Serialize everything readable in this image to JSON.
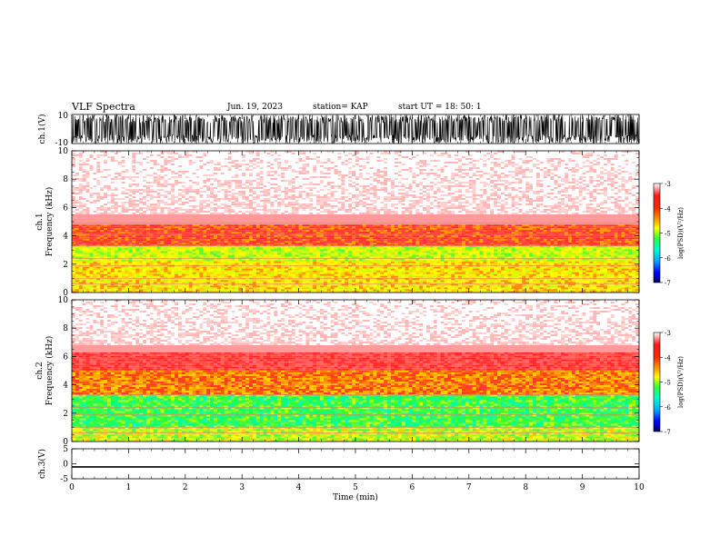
{
  "header": {
    "title": "VLF Spectra",
    "date": "Jun. 19, 2023",
    "station": "station= KAP",
    "start": "start  UT =   18: 50: 1"
  },
  "colors": {
    "red": "#ff2a2a",
    "pale_red": "#ffd6d6",
    "yellow": "#ffff00",
    "green": "#22ff22",
    "cyan": "#00ffd0",
    "blue": "#0000ff",
    "waveform": "#000000"
  },
  "chart_data": [
    {
      "type": "line",
      "panel": "ch1-waveform",
      "ylabel": "ch.1(V)",
      "ylim": [
        -10,
        10
      ],
      "yticks": [
        "10",
        "-10"
      ],
      "xlim": [
        0,
        10
      ],
      "series": [
        {
          "values_range": [
            -10,
            10
          ]
        }
      ]
    },
    {
      "type": "heatmap",
      "panel": "ch1-spectrogram",
      "ylabel_line1": "ch.1",
      "ylabel_line2": "Frequency (kHz)",
      "ylim": [
        0,
        10
      ],
      "yticks": [
        "0",
        "2",
        "4",
        "6",
        "8",
        "10"
      ],
      "xlim": [
        0,
        10
      ],
      "bands_khz": [
        {
          "from": 0,
          "to": 1.0,
          "level": "yellow"
        },
        {
          "from": 1.0,
          "to": 2.2,
          "level": "yellow"
        },
        {
          "from": 2.2,
          "to": 3.3,
          "level": "green-yellow"
        },
        {
          "from": 3.3,
          "to": 4.8,
          "level": "red-orange"
        },
        {
          "from": 4.8,
          "to": 10.0,
          "level": "pale-red"
        }
      ],
      "colorbar": {
        "label": "log(PSD)(V²/Hz)",
        "ticks": [
          "-3",
          "-4",
          "-5",
          "-6",
          "-7"
        ],
        "range": [
          -7,
          -3
        ]
      }
    },
    {
      "type": "heatmap",
      "panel": "ch2-spectrogram",
      "ylabel_line1": "ch.2",
      "ylabel_line2": "Frequency (kHz)",
      "ylim": [
        0,
        10
      ],
      "yticks": [
        "0",
        "2",
        "4",
        "6",
        "8",
        "10"
      ],
      "xlim": [
        0,
        10
      ],
      "bands_khz": [
        {
          "from": 0,
          "to": 1.0,
          "level": "yellow-green"
        },
        {
          "from": 1.0,
          "to": 3.3,
          "level": "green"
        },
        {
          "from": 3.3,
          "to": 5.0,
          "level": "orange"
        },
        {
          "from": 5.0,
          "to": 6.3,
          "level": "red"
        },
        {
          "from": 6.3,
          "to": 10.0,
          "level": "pale-red"
        }
      ],
      "colorbar": {
        "label": "log(PSD)(V²/Hz)",
        "ticks": [
          "-3",
          "-4",
          "-5",
          "-6",
          "-7"
        ],
        "range": [
          -7,
          -3
        ]
      }
    },
    {
      "type": "line",
      "panel": "ch3-waveform",
      "ylabel": "ch.3(V)",
      "ylim": [
        -5,
        5
      ],
      "yticks": [
        "5",
        "0",
        "-5"
      ],
      "xlim": [
        0,
        10
      ],
      "xlabel": "Time (min)",
      "xticks": [
        "0",
        "1",
        "2",
        "3",
        "4",
        "5",
        "6",
        "7",
        "8",
        "9",
        "10"
      ],
      "series": [
        {
          "values_range": [
            -1.3,
            -0.8
          ]
        }
      ]
    }
  ]
}
